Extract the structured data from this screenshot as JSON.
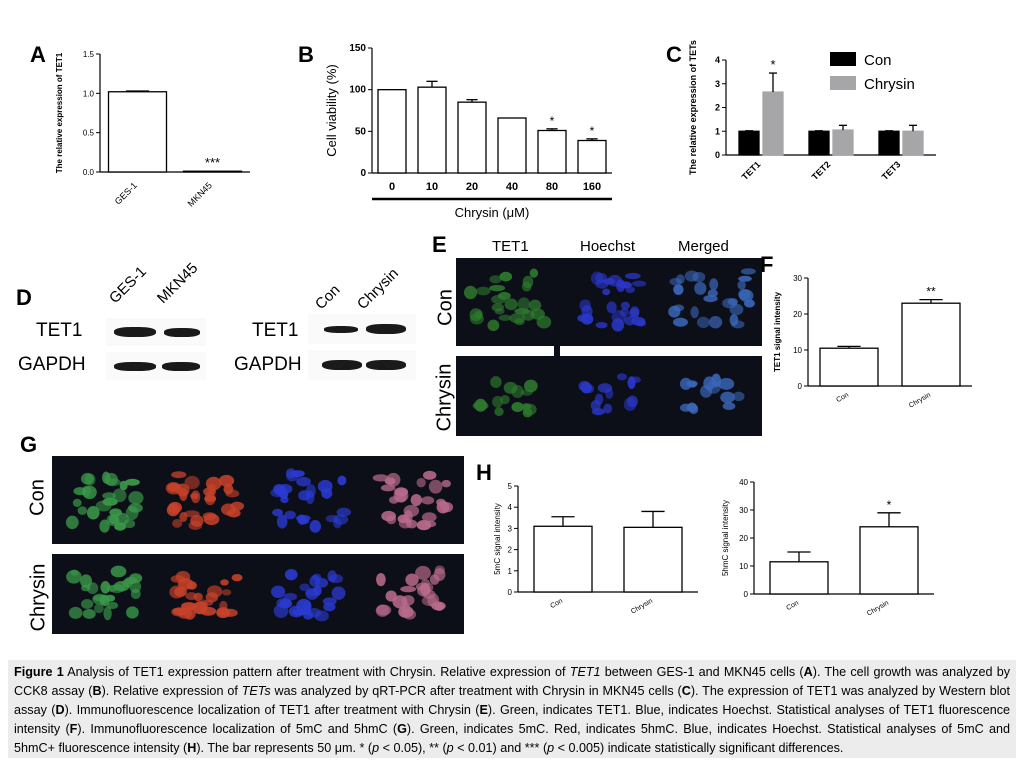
{
  "panel_letters": {
    "A": "A",
    "B": "B",
    "C": "C",
    "D": "D",
    "E": "E",
    "F": "F",
    "G": "G",
    "H": "H"
  },
  "chart_data": [
    {
      "id": "A",
      "type": "bar",
      "categories": [
        "GES-1",
        "MKN45"
      ],
      "values": [
        1.02,
        0.01
      ],
      "ylabel": "The relative expression of TET1",
      "ylim": [
        0,
        1.5
      ],
      "yticks": [
        "0.0",
        "0.5",
        "1.0",
        "1.5"
      ],
      "annotations": [
        "",
        "***"
      ],
      "error": [
        0.01,
        0.0
      ]
    },
    {
      "id": "B",
      "type": "bar",
      "categories": [
        "0",
        "10",
        "20",
        "40",
        "80",
        "160"
      ],
      "values": [
        100,
        103,
        85,
        66,
        51,
        39
      ],
      "error": [
        0,
        7,
        3,
        0,
        2,
        2
      ],
      "xlabel": "Chrysin (μM)",
      "ylabel": "Cell viability (%)",
      "ylim": [
        0,
        150
      ],
      "yticks": [
        "0",
        "50",
        "100",
        "150"
      ],
      "annotations": [
        "",
        "",
        "",
        "",
        "*",
        "*"
      ]
    },
    {
      "id": "C",
      "type": "bar",
      "categories": [
        "TET1",
        "TET2",
        "TET3"
      ],
      "series": [
        {
          "name": "Con",
          "values": [
            1.0,
            1.0,
            1.0
          ],
          "error": [
            0.02,
            0.02,
            0.02
          ]
        },
        {
          "name": "Chrysin",
          "values": [
            2.65,
            1.05,
            1.0
          ],
          "error": [
            0.8,
            0.2,
            0.25
          ]
        }
      ],
      "ylabel": "The relative expression of TETs",
      "ylim": [
        0,
        4
      ],
      "yticks": [
        "0",
        "1",
        "2",
        "3",
        "4"
      ],
      "annotations": [
        "*",
        "",
        ""
      ],
      "legend": "top-right"
    },
    {
      "id": "F",
      "type": "bar",
      "categories": [
        "Con",
        "Chrysin"
      ],
      "values": [
        10.5,
        23
      ],
      "error": [
        0.5,
        1.0
      ],
      "ylabel": "TET1 signal intensity",
      "ylim": [
        0,
        30
      ],
      "yticks": [
        "0",
        "10",
        "20",
        "30"
      ],
      "annotations": [
        "",
        "**"
      ]
    },
    {
      "id": "H1",
      "type": "bar",
      "categories": [
        "Con",
        "Chrysin"
      ],
      "values": [
        3.1,
        3.05
      ],
      "error": [
        0.45,
        0.75
      ],
      "ylabel": "5mC signal intensity",
      "ylim": [
        0,
        5
      ],
      "yticks": [
        "0",
        "1",
        "2",
        "3",
        "4",
        "5"
      ],
      "annotations": [
        "",
        ""
      ]
    },
    {
      "id": "H2",
      "type": "bar",
      "categories": [
        "Con",
        "Chrysin"
      ],
      "values": [
        11.5,
        24
      ],
      "error": [
        3.5,
        5
      ],
      "ylabel": "5hmC signal intensity",
      "ylim": [
        0,
        40
      ],
      "yticks": [
        "0",
        "10",
        "20",
        "30",
        "40"
      ],
      "annotations": [
        "",
        "*"
      ]
    }
  ],
  "blots": {
    "left_cols": [
      "GES-1",
      "MKN45"
    ],
    "right_cols": [
      "Con",
      "Chrysin"
    ],
    "rows": [
      "TET1",
      "GAPDH"
    ]
  },
  "panelE": {
    "cols": [
      "TET1",
      "Hoechst",
      "Merged"
    ],
    "rows": [
      "Con",
      "Chrysin"
    ]
  },
  "panelG": {
    "rows": [
      "Con",
      "Chrysin"
    ]
  },
  "caption": {
    "title": "Figure 1",
    "p1": " Analysis of TET1 expression pattern after treatment with Chrysin. Relative expression of ",
    "i1": "TET1",
    "p2": " between GES-1 and MKN45 cells (",
    "p3": "). The cell growth was analyzed by CCK8 assay (",
    "p4": "). Relative expression of ",
    "i2": "TETs",
    "p5": " was analyzed by qRT-PCR after treatment with Chrysin in MKN45 cells (",
    "p6": "). The expression of TET1 was analyzed by Western blot assay (",
    "p7": "). Immunofluorescence localization of TET1 after treatment with Chrysin (",
    "p8": "). Green, indicates TET1. Blue, indicates Hoechst. Statistical analyses of TET1 fluorescence intensity (",
    "p9": "). Immunofluorescence localization of 5mC and 5hmC (",
    "p10": "). Green, indicates 5mC. Red, indicates 5hmC. Blue, indicates Hoechst. Statistical analyses of 5mC and 5hmC+ fluorescence intensity (",
    "p11": "). The bar represents 50 μm. * (",
    "p12": " < 0.05), **  (",
    "p13": " < 0.01) and *** (",
    "p14": " < 0.005) indicate statistically significant differences.",
    "p_italic": "p"
  }
}
